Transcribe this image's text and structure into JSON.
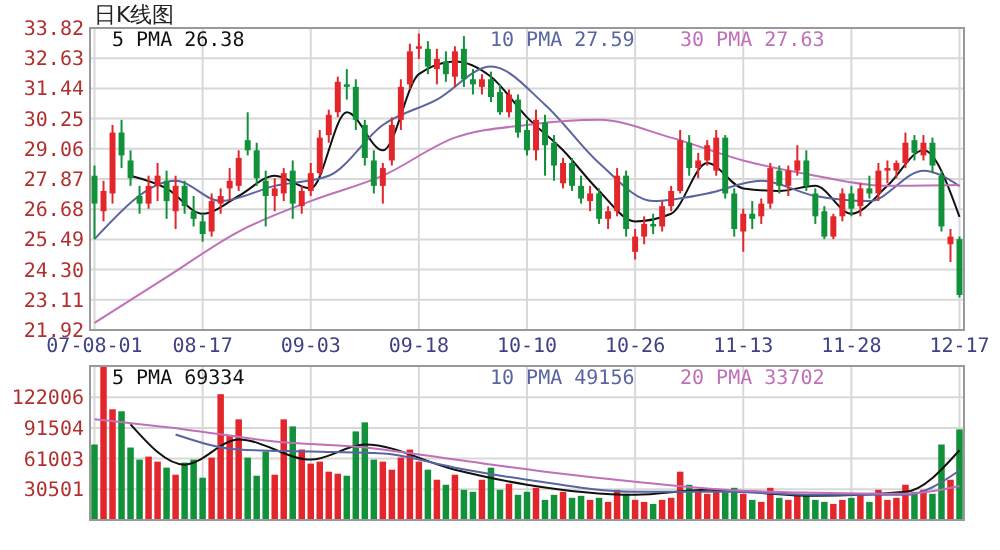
{
  "chart_data": [
    {
      "type": "candlestick",
      "title": "日K线图",
      "legend": "top",
      "grid": true,
      "categories": [
        "07-08-01",
        null,
        null,
        null,
        null,
        null,
        null,
        null,
        null,
        null,
        null,
        null,
        "08-17",
        null,
        null,
        null,
        null,
        null,
        null,
        null,
        null,
        null,
        null,
        null,
        "09-03",
        null,
        null,
        null,
        null,
        null,
        null,
        null,
        null,
        null,
        null,
        null,
        "09-18",
        null,
        null,
        null,
        null,
        null,
        null,
        null,
        null,
        null,
        null,
        null,
        "10-10",
        null,
        null,
        null,
        null,
        null,
        null,
        null,
        null,
        null,
        null,
        null,
        "10-26",
        null,
        null,
        null,
        null,
        null,
        null,
        null,
        null,
        null,
        null,
        null,
        "11-13",
        null,
        null,
        null,
        null,
        null,
        null,
        null,
        null,
        null,
        null,
        null,
        "11-28",
        null,
        null,
        null,
        null,
        null,
        null,
        null,
        null,
        null,
        null,
        null,
        "12-17"
      ],
      "ylim": [
        21.92,
        33.82
      ],
      "yticks": [
        {
          "value": 21.92,
          "label": "21.92"
        },
        {
          "value": 23.11,
          "label": "23.11"
        },
        {
          "value": 24.3,
          "label": "24.30"
        },
        {
          "value": 25.49,
          "label": "25.49"
        },
        {
          "value": 26.68,
          "label": "26.68"
        },
        {
          "value": 27.87,
          "label": "27.87"
        },
        {
          "value": 29.06,
          "label": "29.06"
        },
        {
          "value": 30.25,
          "label": "30.25"
        },
        {
          "value": 31.44,
          "label": "31.44"
        },
        {
          "value": 32.63,
          "label": "32.63"
        },
        {
          "value": 33.82,
          "label": "33.82"
        }
      ],
      "series": [
        {
          "ohlc": [
            [
              28.0,
              28.4,
              25.5,
              26.9
            ],
            [
              26.6,
              27.8,
              26.2,
              27.4
            ],
            [
              27.3,
              30.0,
              26.9,
              29.7
            ],
            [
              29.7,
              30.2,
              28.3,
              28.8
            ],
            [
              28.6,
              29.0,
              27.6,
              27.9
            ],
            [
              27.2,
              27.6,
              26.5,
              26.9
            ],
            [
              26.9,
              28.0,
              26.7,
              27.6
            ],
            [
              27.6,
              28.5,
              27.0,
              28.0
            ],
            [
              27.8,
              28.2,
              26.3,
              27.0
            ],
            [
              26.6,
              28.0,
              25.9,
              27.6
            ],
            [
              27.6,
              27.8,
              26.5,
              26.8
            ],
            [
              26.6,
              27.2,
              26.0,
              26.3
            ],
            [
              26.2,
              26.5,
              25.4,
              25.7
            ],
            [
              25.8,
              27.3,
              25.6,
              27.0
            ],
            [
              26.9,
              27.5,
              26.5,
              27.2
            ],
            [
              27.5,
              28.3,
              27.0,
              27.8
            ],
            [
              27.6,
              29.0,
              27.4,
              28.7
            ],
            [
              29.4,
              30.5,
              28.8,
              29.0
            ],
            [
              29.0,
              29.3,
              27.6,
              27.9
            ],
            [
              27.8,
              28.2,
              26.0,
              27.2
            ],
            [
              27.2,
              27.9,
              26.6,
              27.5
            ],
            [
              27.3,
              28.3,
              27.0,
              28.1
            ],
            [
              28.2,
              28.6,
              26.3,
              26.9
            ],
            [
              26.8,
              27.6,
              26.5,
              27.4
            ],
            [
              27.4,
              28.5,
              27.2,
              28.1
            ],
            [
              28.1,
              29.8,
              28.0,
              29.5
            ],
            [
              29.6,
              30.6,
              29.3,
              30.4
            ],
            [
              30.5,
              31.9,
              30.3,
              31.7
            ],
            [
              31.6,
              32.2,
              31.0,
              31.5
            ],
            [
              31.5,
              31.8,
              29.8,
              30.2
            ],
            [
              30.0,
              30.2,
              28.4,
              28.7
            ],
            [
              28.6,
              29.0,
              27.3,
              27.6
            ],
            [
              27.6,
              28.5,
              26.9,
              28.3
            ],
            [
              28.6,
              30.3,
              28.4,
              30.0
            ],
            [
              30.2,
              31.8,
              29.8,
              31.5
            ],
            [
              31.6,
              33.2,
              31.4,
              32.9
            ],
            [
              33.0,
              33.6,
              32.6,
              33.1
            ],
            [
              33.0,
              33.3,
              32.0,
              32.3
            ],
            [
              32.2,
              33.0,
              31.6,
              32.6
            ],
            [
              32.5,
              32.9,
              31.7,
              32.0
            ],
            [
              31.9,
              33.1,
              31.5,
              32.9
            ],
            [
              33.0,
              33.5,
              31.5,
              31.8
            ],
            [
              31.8,
              32.2,
              31.2,
              31.6
            ],
            [
              31.5,
              32.0,
              31.2,
              31.8
            ],
            [
              31.8,
              32.1,
              30.9,
              31.1
            ],
            [
              31.3,
              31.6,
              30.4,
              30.5
            ],
            [
              30.5,
              31.4,
              30.3,
              31.2
            ],
            [
              31.0,
              31.2,
              29.5,
              29.7
            ],
            [
              29.8,
              30.2,
              28.8,
              29.0
            ],
            [
              29.0,
              30.6,
              28.6,
              30.2
            ],
            [
              30.1,
              30.4,
              28.0,
              29.2
            ],
            [
              29.3,
              29.6,
              27.8,
              28.4
            ],
            [
              27.7,
              28.7,
              27.5,
              28.5
            ],
            [
              28.5,
              28.7,
              27.4,
              27.6
            ],
            [
              27.6,
              28.0,
              26.9,
              27.1
            ],
            [
              27.0,
              27.6,
              26.6,
              27.3
            ],
            [
              27.3,
              27.5,
              26.1,
              26.3
            ],
            [
              26.3,
              26.8,
              25.9,
              26.6
            ],
            [
              26.6,
              28.3,
              26.4,
              28.0
            ],
            [
              28.0,
              28.2,
              25.6,
              25.9
            ],
            [
              25.0,
              25.9,
              24.7,
              25.6
            ],
            [
              25.6,
              26.4,
              25.3,
              26.1
            ],
            [
              26.1,
              26.5,
              25.7,
              26.0
            ],
            [
              26.0,
              27.0,
              25.8,
              26.8
            ],
            [
              26.8,
              27.6,
              26.6,
              27.4
            ],
            [
              27.4,
              29.8,
              27.3,
              29.4
            ],
            [
              29.3,
              29.6,
              28.0,
              28.3
            ],
            [
              28.3,
              28.9,
              27.9,
              28.6
            ],
            [
              28.6,
              29.4,
              28.4,
              29.2
            ],
            [
              28.2,
              29.8,
              28.0,
              29.5
            ],
            [
              29.5,
              29.6,
              27.1,
              27.3
            ],
            [
              27.3,
              27.5,
              25.6,
              25.9
            ],
            [
              25.8,
              26.7,
              25.0,
              26.5
            ],
            [
              26.5,
              27.0,
              25.9,
              26.3
            ],
            [
              26.4,
              27.1,
              26.1,
              26.9
            ],
            [
              26.9,
              28.5,
              26.7,
              28.3
            ],
            [
              28.2,
              28.4,
              27.3,
              27.6
            ],
            [
              27.6,
              28.4,
              27.2,
              28.2
            ],
            [
              28.2,
              29.2,
              28.0,
              28.6
            ],
            [
              28.6,
              29.0,
              27.4,
              27.6
            ],
            [
              27.3,
              27.5,
              26.1,
              26.4
            ],
            [
              26.6,
              26.8,
              25.5,
              25.6
            ],
            [
              25.6,
              26.5,
              25.5,
              26.4
            ],
            [
              26.4,
              27.5,
              26.2,
              27.3
            ],
            [
              27.3,
              27.6,
              26.4,
              26.7
            ],
            [
              26.8,
              27.7,
              26.4,
              27.5
            ],
            [
              27.5,
              28.0,
              27.1,
              27.3
            ],
            [
              27.3,
              28.5,
              27.0,
              28.2
            ],
            [
              28.2,
              28.6,
              27.7,
              28.3
            ],
            [
              28.2,
              28.6,
              27.9,
              28.5
            ],
            [
              28.5,
              29.7,
              28.3,
              29.3
            ],
            [
              29.4,
              29.6,
              28.6,
              28.9
            ],
            [
              28.8,
              29.6,
              28.6,
              29.3
            ],
            [
              29.3,
              29.5,
              28.1,
              28.4
            ],
            [
              28.0,
              28.2,
              25.8,
              26.0
            ],
            [
              25.3,
              25.9,
              24.6,
              25.6
            ],
            [
              25.5,
              25.6,
              23.2,
              23.3
            ]
          ],
          "colors": [
            "#11913a",
            "#e3262b",
            "#e3262b",
            "#11913a",
            "#11913a",
            "#11913a",
            "#e3262b",
            "#e3262b",
            "#11913a",
            "#e3262b",
            "#11913a",
            "#11913a",
            "#11913a",
            "#e3262b",
            "#e3262b",
            "#e3262b",
            "#e3262b",
            "#11913a",
            "#11913a",
            "#11913a",
            "#e3262b",
            "#e3262b",
            "#11913a",
            "#e3262b",
            "#e3262b",
            "#e3262b",
            "#e3262b",
            "#e3262b",
            "#11913a",
            "#11913a",
            "#11913a",
            "#11913a",
            "#e3262b",
            "#e3262b",
            "#e3262b",
            "#e3262b",
            "#e3262b",
            "#11913a",
            "#e3262b",
            "#11913a",
            "#e3262b",
            "#11913a",
            "#11913a",
            "#e3262b",
            "#11913a",
            "#11913a",
            "#e3262b",
            "#11913a",
            "#11913a",
            "#e3262b",
            "#11913a",
            "#11913a",
            "#e3262b",
            "#11913a",
            "#11913a",
            "#e3262b",
            "#11913a",
            "#e3262b",
            "#e3262b",
            "#11913a",
            "#e3262b",
            "#e3262b",
            "#11913a",
            "#e3262b",
            "#e3262b",
            "#e3262b",
            "#11913a",
            "#e3262b",
            "#e3262b",
            "#e3262b",
            "#11913a",
            "#11913a",
            "#e3262b",
            "#11913a",
            "#e3262b",
            "#e3262b",
            "#11913a",
            "#e3262b",
            "#e3262b",
            "#11913a",
            "#11913a",
            "#11913a",
            "#e3262b",
            "#e3262b",
            "#11913a",
            "#e3262b",
            "#11913a",
            "#e3262b",
            "#e3262b",
            "#e3262b",
            "#e3262b",
            "#11913a",
            "#e3262b",
            "#11913a",
            "#11913a",
            "#e3262b",
            "#11913a"
          ]
        },
        {
          "type": "line",
          "name": "5 PMA 26.38",
          "color": "#111111",
          "values": [
            null,
            null,
            null,
            null,
            28.0,
            null,
            null,
            null,
            27.5,
            null,
            null,
            null,
            26.5,
            null,
            null,
            null,
            27.2,
            null,
            null,
            null,
            28.0,
            null,
            null,
            null,
            27.5,
            null,
            null,
            null,
            30.5,
            null,
            null,
            null,
            29.0,
            null,
            null,
            null,
            32.0,
            null,
            null,
            null,
            32.5,
            null,
            null,
            null,
            31.9,
            null,
            null,
            null,
            30.3,
            null,
            null,
            null,
            29.0,
            null,
            null,
            null,
            27.4,
            null,
            null,
            null,
            26.2,
            null,
            null,
            null,
            26.5,
            null,
            null,
            null,
            28.5,
            null,
            null,
            null,
            27.5,
            null,
            null,
            null,
            27.4,
            null,
            null,
            null,
            27.6,
            null,
            null,
            null,
            26.5,
            null,
            null,
            null,
            27.6,
            null,
            null,
            null,
            29.0,
            null,
            null,
            null,
            26.38
          ]
        },
        {
          "type": "line",
          "name": "10 PMA 27.59",
          "color": "#5a64a0",
          "values": [
            25.5,
            null,
            null,
            null,
            null,
            null,
            null,
            null,
            null,
            27.8,
            null,
            null,
            null,
            null,
            27.0,
            null,
            null,
            null,
            null,
            null,
            27.6,
            null,
            null,
            null,
            null,
            null,
            28.0,
            null,
            null,
            null,
            null,
            null,
            30.0,
            null,
            null,
            null,
            null,
            null,
            31.0,
            null,
            null,
            null,
            null,
            null,
            32.3,
            null,
            null,
            null,
            null,
            null,
            30.8,
            null,
            null,
            null,
            null,
            null,
            28.5,
            null,
            null,
            null,
            null,
            null,
            27.0,
            null,
            null,
            null,
            null,
            null,
            27.3,
            null,
            null,
            null,
            null,
            null,
            27.8,
            null,
            null,
            null,
            null,
            null,
            27.2,
            null,
            null,
            null,
            null,
            null,
            27.0,
            null,
            null,
            null,
            null,
            null,
            28.2,
            null,
            null,
            null,
            27.59
          ]
        },
        {
          "type": "line",
          "name": "30 PMA 27.63",
          "color": "#c070b8",
          "values": [
            22.2,
            null,
            null,
            null,
            null,
            null,
            null,
            null,
            24.0,
            null,
            null,
            null,
            null,
            null,
            null,
            null,
            25.8,
            null,
            null,
            null,
            null,
            null,
            null,
            null,
            27.0,
            null,
            null,
            null,
            null,
            null,
            null,
            null,
            28.0,
            null,
            null,
            null,
            null,
            null,
            null,
            null,
            29.5,
            null,
            null,
            null,
            null,
            null,
            null,
            null,
            30.0,
            null,
            null,
            null,
            null,
            null,
            null,
            null,
            30.2,
            null,
            null,
            null,
            null,
            null,
            null,
            null,
            29.5,
            null,
            null,
            null,
            null,
            null,
            null,
            null,
            28.6,
            null,
            null,
            null,
            null,
            null,
            null,
            null,
            28.0,
            null,
            null,
            null,
            null,
            null,
            null,
            null,
            27.6,
            null,
            null,
            null,
            null,
            null,
            null,
            null,
            27.63
          ]
        }
      ]
    },
    {
      "type": "bar",
      "legend": "top",
      "grid": true,
      "tick_labels": "y",
      "categories": [
        null,
        null,
        null,
        null,
        null,
        null,
        null,
        null,
        null,
        null,
        null,
        null,
        null,
        null,
        null,
        null,
        null,
        null,
        null,
        null,
        null,
        null,
        null,
        null,
        null,
        null,
        null,
        null,
        null,
        null,
        null,
        null,
        null,
        null,
        null,
        null,
        null,
        null,
        null,
        null,
        null,
        null,
        null,
        null,
        null,
        null,
        null,
        null,
        null,
        null,
        null,
        null,
        null,
        null,
        null,
        null,
        null,
        null,
        null,
        null,
        null,
        null,
        null,
        null,
        null,
        null,
        null,
        null,
        null,
        null,
        null,
        null,
        null,
        null,
        null,
        null,
        null,
        null,
        null,
        null,
        null,
        null,
        null,
        null,
        null,
        null,
        null,
        null,
        null,
        null,
        null,
        null,
        null,
        null,
        null,
        null,
        null
      ],
      "ylim": [
        0,
        153000
      ],
      "yticks": [
        30501,
        61003,
        91504,
        122006
      ],
      "series": [
        {
          "values": [
            75000,
            153000,
            110000,
            108000,
            72000,
            60000,
            63000,
            58000,
            52000,
            45000,
            57000,
            60000,
            42000,
            62000,
            125000,
            84000,
            100000,
            62000,
            44000,
            68000,
            45000,
            100000,
            93000,
            70000,
            56000,
            58000,
            48000,
            46000,
            44000,
            88000,
            97000,
            60000,
            58000,
            50000,
            62000,
            70000,
            58000,
            50000,
            40000,
            35000,
            45000,
            30000,
            28000,
            40000,
            52000,
            30000,
            36000,
            25000,
            28000,
            32000,
            20000,
            25000,
            28000,
            22000,
            24000,
            20000,
            22000,
            18000,
            30000,
            26000,
            20000,
            18000,
            16000,
            20000,
            22000,
            48000,
            35000,
            28000,
            26000,
            30000,
            28000,
            32000,
            26000,
            20000,
            18000,
            32000,
            22000,
            20000,
            26000,
            24000,
            20000,
            18000,
            16000,
            20000,
            22000,
            24000,
            18000,
            30000,
            20000,
            22000,
            35000,
            28000,
            30000,
            26000,
            75000,
            40000,
            90000
          ],
          "colors": [
            "#11913a",
            "#e3262b",
            "#e3262b",
            "#11913a",
            "#11913a",
            "#11913a",
            "#e3262b",
            "#e3262b",
            "#11913a",
            "#e3262b",
            "#11913a",
            "#11913a",
            "#11913a",
            "#e3262b",
            "#e3262b",
            "#e3262b",
            "#e3262b",
            "#11913a",
            "#11913a",
            "#11913a",
            "#e3262b",
            "#e3262b",
            "#11913a",
            "#e3262b",
            "#e3262b",
            "#e3262b",
            "#e3262b",
            "#e3262b",
            "#11913a",
            "#11913a",
            "#11913a",
            "#11913a",
            "#e3262b",
            "#e3262b",
            "#e3262b",
            "#e3262b",
            "#e3262b",
            "#11913a",
            "#e3262b",
            "#11913a",
            "#e3262b",
            "#11913a",
            "#11913a",
            "#e3262b",
            "#11913a",
            "#11913a",
            "#e3262b",
            "#11913a",
            "#11913a",
            "#e3262b",
            "#11913a",
            "#11913a",
            "#e3262b",
            "#11913a",
            "#11913a",
            "#e3262b",
            "#11913a",
            "#e3262b",
            "#e3262b",
            "#11913a",
            "#e3262b",
            "#e3262b",
            "#11913a",
            "#e3262b",
            "#e3262b",
            "#e3262b",
            "#11913a",
            "#e3262b",
            "#e3262b",
            "#e3262b",
            "#11913a",
            "#11913a",
            "#e3262b",
            "#11913a",
            "#e3262b",
            "#e3262b",
            "#11913a",
            "#e3262b",
            "#e3262b",
            "#11913a",
            "#11913a",
            "#11913a",
            "#e3262b",
            "#e3262b",
            "#11913a",
            "#e3262b",
            "#11913a",
            "#e3262b",
            "#e3262b",
            "#e3262b",
            "#e3262b",
            "#11913a",
            "#e3262b",
            "#11913a",
            "#11913a",
            "#e3262b",
            "#11913a"
          ]
        },
        {
          "type": "line",
          "name": "5 PMA 69334",
          "color": "#111111",
          "values": [
            null,
            null,
            null,
            null,
            95000,
            null,
            null,
            null,
            null,
            null,
            55000,
            null,
            null,
            null,
            null,
            null,
            80000,
            null,
            null,
            null,
            null,
            null,
            null,
            null,
            60000,
            null,
            null,
            null,
            null,
            null,
            75000,
            null,
            null,
            null,
            null,
            null,
            null,
            null,
            null,
            null,
            50000,
            null,
            null,
            null,
            null,
            null,
            null,
            null,
            35000,
            null,
            null,
            null,
            null,
            null,
            null,
            null,
            null,
            null,
            null,
            null,
            25000,
            null,
            null,
            null,
            null,
            null,
            null,
            null,
            30000,
            null,
            null,
            null,
            null,
            null,
            null,
            null,
            null,
            null,
            null,
            null,
            24000,
            null,
            null,
            null,
            null,
            null,
            null,
            null,
            null,
            null,
            28000,
            null,
            null,
            null,
            null,
            null,
            69334
          ]
        },
        {
          "type": "line",
          "name": "10 PMA 49156",
          "color": "#5a64a0",
          "values": [
            null,
            null,
            null,
            null,
            null,
            null,
            null,
            null,
            null,
            85000,
            null,
            null,
            null,
            null,
            null,
            null,
            70000,
            null,
            null,
            null,
            null,
            null,
            null,
            null,
            68000,
            null,
            null,
            null,
            null,
            null,
            null,
            null,
            66000,
            null,
            null,
            null,
            null,
            null,
            null,
            null,
            52000,
            null,
            null,
            null,
            null,
            null,
            null,
            null,
            40000,
            null,
            null,
            null,
            null,
            null,
            null,
            null,
            null,
            null,
            null,
            null,
            28000,
            null,
            null,
            null,
            null,
            null,
            null,
            null,
            null,
            null,
            28000,
            null,
            null,
            null,
            null,
            null,
            null,
            null,
            null,
            null,
            25000,
            null,
            null,
            null,
            null,
            null,
            null,
            null,
            null,
            null,
            25000,
            null,
            null,
            null,
            null,
            null,
            49156
          ]
        },
        {
          "type": "line",
          "name": "20 PMA 33702",
          "color": "#c070b8",
          "values": [
            100000,
            null,
            null,
            null,
            null,
            null,
            null,
            null,
            null,
            null,
            90000,
            null,
            null,
            null,
            null,
            null,
            null,
            null,
            null,
            null,
            78000,
            null,
            null,
            null,
            null,
            null,
            null,
            null,
            null,
            null,
            72000,
            null,
            null,
            null,
            null,
            null,
            null,
            null,
            null,
            null,
            60000,
            null,
            null,
            null,
            null,
            null,
            null,
            null,
            null,
            null,
            48000,
            null,
            null,
            null,
            null,
            null,
            null,
            null,
            null,
            null,
            38000,
            null,
            null,
            null,
            null,
            null,
            null,
            null,
            null,
            null,
            30000,
            null,
            null,
            null,
            null,
            null,
            null,
            null,
            null,
            null,
            27000,
            null,
            null,
            null,
            null,
            null,
            null,
            null,
            null,
            null,
            26000,
            null,
            null,
            null,
            null,
            null,
            33702
          ]
        }
      ]
    }
  ]
}
